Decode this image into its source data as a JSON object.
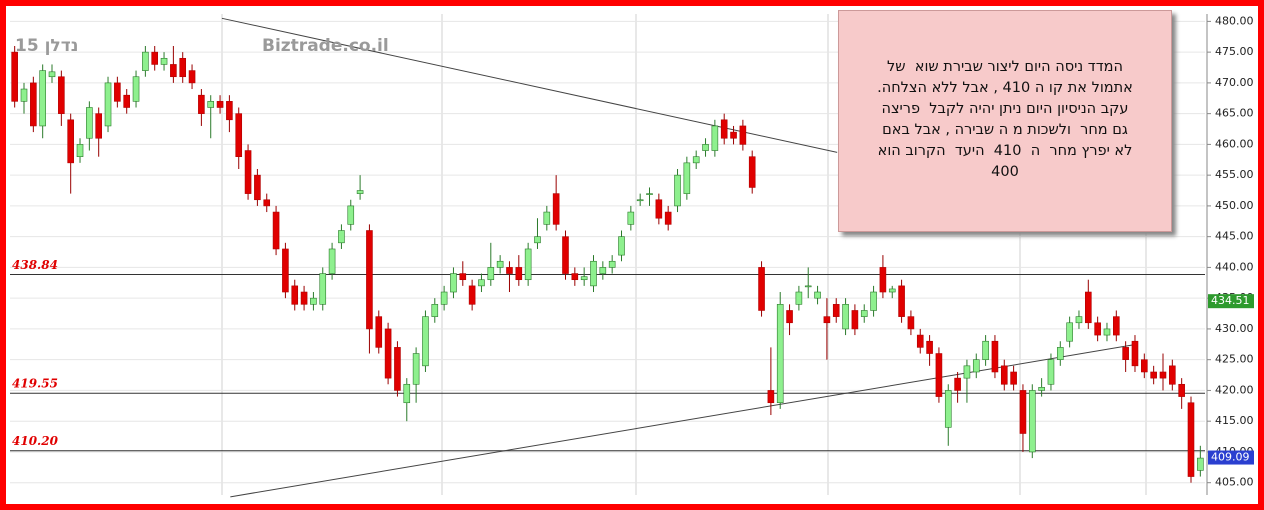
{
  "chart_data": {
    "type": "candlestick",
    "open": [
      475,
      467,
      470,
      463,
      471,
      471,
      464,
      458,
      461,
      465,
      463,
      470,
      468,
      467,
      472,
      475,
      473,
      473,
      474,
      472,
      468,
      466,
      467,
      467,
      465,
      459,
      455,
      451,
      449,
      443,
      437,
      436,
      434,
      434,
      439,
      444,
      447,
      452,
      446,
      432,
      430,
      427,
      418,
      421,
      424,
      432,
      434,
      436,
      439,
      437,
      437,
      438,
      440,
      440,
      440,
      438,
      444,
      447,
      452,
      445,
      439,
      438,
      437,
      439,
      440,
      442,
      447,
      451,
      452,
      451,
      449,
      450,
      452,
      457,
      459,
      459,
      464,
      462,
      463,
      458,
      440,
      420,
      418,
      433,
      434,
      437,
      435,
      432,
      434,
      430,
      433,
      432,
      433,
      440,
      436,
      437,
      432,
      429,
      428,
      426,
      414,
      422,
      422,
      423,
      425,
      428,
      424,
      423,
      420,
      410,
      420,
      421,
      425,
      428,
      431,
      436,
      431,
      429,
      432,
      427,
      428,
      425,
      423,
      423,
      424,
      421,
      418,
      407
    ],
    "high": [
      476,
      470,
      471,
      473,
      473,
      472,
      465,
      461,
      467,
      466,
      471,
      471,
      469,
      472,
      476,
      476,
      475,
      476,
      475,
      473,
      469,
      468,
      468,
      468,
      466,
      460,
      456,
      452,
      450,
      444,
      438,
      437,
      436,
      440,
      444,
      447,
      451,
      455,
      447,
      433,
      431,
      428,
      422,
      427,
      433,
      435,
      437,
      440,
      441,
      438,
      439,
      444,
      442,
      441,
      442,
      444,
      448,
      450,
      455,
      446,
      440,
      440,
      442,
      441,
      442,
      446,
      450,
      452,
      453,
      452,
      450,
      456,
      458,
      459,
      461,
      464,
      465,
      463,
      464,
      459,
      441,
      427,
      436,
      434,
      437,
      440,
      437,
      435,
      435,
      435,
      434,
      434,
      437,
      442,
      437,
      438,
      433,
      430,
      429,
      427,
      421,
      423,
      425,
      426,
      429,
      429,
      425,
      424,
      421,
      421,
      422,
      426,
      428,
      432,
      433,
      438,
      432,
      431,
      433,
      428,
      429,
      426,
      424,
      426,
      425,
      422,
      419,
      411
    ],
    "low": [
      466,
      465,
      462,
      461,
      470,
      463,
      452,
      457,
      459,
      458,
      462,
      466,
      465,
      466,
      471,
      472,
      472,
      470,
      470,
      469,
      463,
      461,
      465,
      462,
      456,
      451,
      450,
      449,
      442,
      435,
      433,
      433,
      433,
      433,
      438,
      443,
      446,
      451,
      426,
      426,
      421,
      419,
      415,
      418,
      423,
      431,
      433,
      435,
      437,
      433,
      436,
      437,
      439,
      436,
      437,
      437,
      443,
      446,
      446,
      438,
      437,
      437,
      436,
      438,
      439,
      441,
      446,
      450,
      450,
      447,
      446,
      449,
      451,
      456,
      458,
      458,
      460,
      460,
      459,
      452,
      432,
      416,
      417,
      429,
      433,
      435,
      434,
      425,
      431,
      429,
      429,
      431,
      432,
      435,
      435,
      431,
      429,
      426,
      424,
      418,
      411,
      418,
      418,
      422,
      424,
      422,
      420,
      420,
      410,
      409,
      419,
      420,
      424,
      427,
      430,
      430,
      428,
      428,
      428,
      423,
      423,
      422,
      421,
      420,
      420,
      417,
      405,
      406
    ],
    "close": [
      467,
      469,
      463,
      472,
      471.8,
      465,
      457,
      460,
      466,
      461,
      470,
      467,
      466,
      471,
      475,
      473,
      474,
      471,
      471,
      470,
      465,
      467,
      466,
      464,
      458,
      452,
      451,
      450,
      443,
      436,
      434,
      434,
      435,
      439,
      443,
      446,
      450,
      452.5,
      430,
      427,
      422,
      420,
      421,
      426,
      432,
      434,
      436,
      439,
      438,
      434,
      438,
      440,
      441,
      439,
      438,
      443,
      445,
      449,
      447,
      439,
      438,
      438.5,
      441,
      440,
      441,
      445,
      449,
      451,
      452,
      448,
      447,
      455,
      457,
      458,
      460,
      463,
      461,
      461,
      460,
      453,
      433,
      418,
      434,
      431,
      436,
      437,
      436,
      431,
      432,
      434,
      430,
      433,
      436,
      436,
      436.5,
      432,
      430,
      427,
      426,
      419,
      420,
      420,
      424,
      425,
      428,
      423,
      421,
      421,
      413,
      420,
      420.5,
      425,
      427,
      431,
      432,
      431,
      429,
      430,
      429,
      425,
      424,
      423,
      422,
      422,
      421,
      419,
      406,
      409
    ],
    "up_color": "#8ef08e",
    "down_color": "#e00000",
    "ylim": [
      403,
      481.2
    ],
    "yticks": [
      {
        "value": 405,
        "label": "405.00"
      },
      {
        "value": 410,
        "label": "410.00"
      },
      {
        "value": 415,
        "label": "415.00"
      },
      {
        "value": 420,
        "label": "420.00"
      },
      {
        "value": 425,
        "label": "425.00"
      },
      {
        "value": 430,
        "label": "430.00"
      },
      {
        "value": 435,
        "label": "435.00"
      },
      {
        "value": 440,
        "label": "440.00"
      },
      {
        "value": 445,
        "label": "445.00"
      },
      {
        "value": 450,
        "label": "450.00"
      },
      {
        "value": 455,
        "label": "455.00"
      },
      {
        "value": 460,
        "label": "460.00"
      },
      {
        "value": 465,
        "label": "465.00"
      },
      {
        "value": 470,
        "label": "470.00"
      },
      {
        "value": 475,
        "label": "475.00"
      },
      {
        "value": 480,
        "label": "480.00"
      }
    ],
    "levels": [
      438.84,
      419.55,
      {
        "value": 410.2,
        "label": "410.20"
      }
    ],
    "trendlines": [
      {
        "x": [
          22.2,
          88.1
        ],
        "y": [
          480.5,
          458.7
        ]
      },
      {
        "x": [
          23.1,
          119.8
        ],
        "y": [
          402.7,
          427.4
        ]
      }
    ],
    "price_markers": [
      {
        "value": 434.51,
        "color": "#2e9a2e"
      },
      {
        "value": 409.09,
        "color": "#2a3fd0"
      }
    ],
    "watermarks": [
      "נדלן 15",
      "Biztrade.co.il"
    ],
    "annotation": [
      "המדד ניסה היום ליצור שבירת שוא  של",
      "אתמול את קו ה 410 , אבל ללא הצלחה.",
      "עקב הניסיון היום ניתן יהיה לקבל  פריצה",
      "גם מחר  ולשכות מ ה שבירה , אבל באם",
      "לא יפרץ מחר  ה  410  היעד  הקרוב הוא",
      "400"
    ]
  }
}
